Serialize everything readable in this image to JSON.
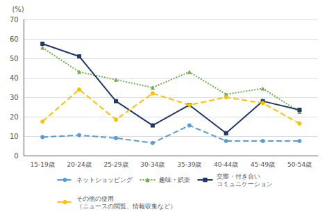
{
  "chart_data": {
    "type": "line",
    "ylabel": "(%)",
    "categories": [
      "15-19歳",
      "20-24歳",
      "25-29歳",
      "30-34歳",
      "35-39歳",
      "40-44歳",
      "45-49歳",
      "50-54歳"
    ],
    "series": [
      {
        "name": "ネットショッピング",
        "color": "#5b9bd5",
        "marker": "circle",
        "line_style": "dashed",
        "values": [
          9.5,
          10.5,
          9.0,
          6.5,
          15.5,
          7.5,
          7.5,
          7.5
        ]
      },
      {
        "name": "趣味・娯楽",
        "color": "#70ad47",
        "marker": "triangle",
        "line_style": "dotted",
        "values": [
          55.5,
          43.0,
          39.0,
          35.0,
          43.0,
          31.5,
          34.5,
          22.5
        ]
      },
      {
        "name": "交際・付き合い\nコミュニケーション",
        "color": "#1f3864",
        "marker": "rect",
        "line_style": "solid",
        "values": [
          57.5,
          51.0,
          28.0,
          15.5,
          26.0,
          11.5,
          28.0,
          23.5
        ]
      },
      {
        "name": "その他の使用\n（ニュースの閲覧、情報収集など）",
        "color": "#ffc000",
        "marker": "circle",
        "line_style": "dashed",
        "values": [
          17.5,
          34.0,
          18.5,
          32.0,
          26.0,
          30.0,
          27.0,
          16.5
        ]
      }
    ],
    "ylim": [
      0,
      70
    ],
    "yticks": [
      0,
      10,
      20,
      30,
      40,
      50,
      60,
      70
    ],
    "grid": true,
    "legend": "bottom"
  }
}
